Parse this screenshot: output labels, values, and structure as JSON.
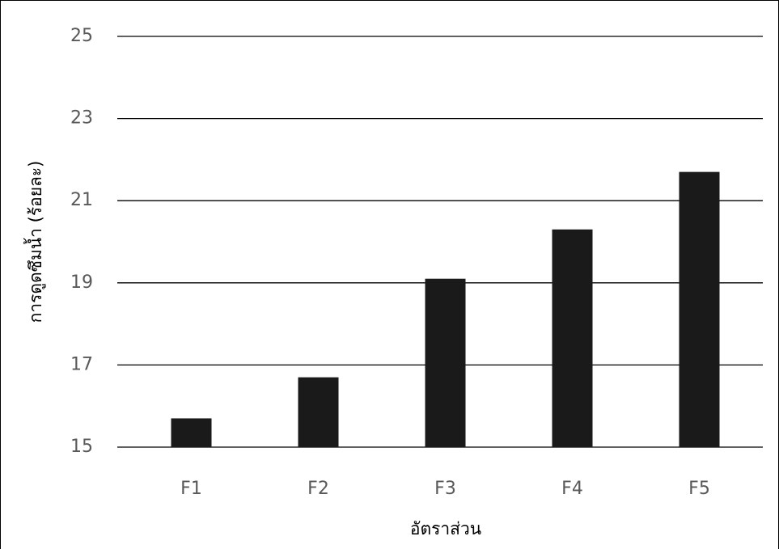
{
  "chart_data": {
    "type": "bar",
    "categories": [
      "F1",
      "F2",
      "F3",
      "F4",
      "F5"
    ],
    "values": [
      15.7,
      16.7,
      19.1,
      20.3,
      21.7
    ],
    "color": "#1a1a1a",
    "ylim": [
      15,
      25
    ],
    "yticks": [
      15,
      17,
      19,
      21,
      23,
      25
    ],
    "grid": true,
    "y_label": "การดูดซึมน้ำ (ร้อยละ)",
    "x_label": "อัตราส่วน"
  }
}
